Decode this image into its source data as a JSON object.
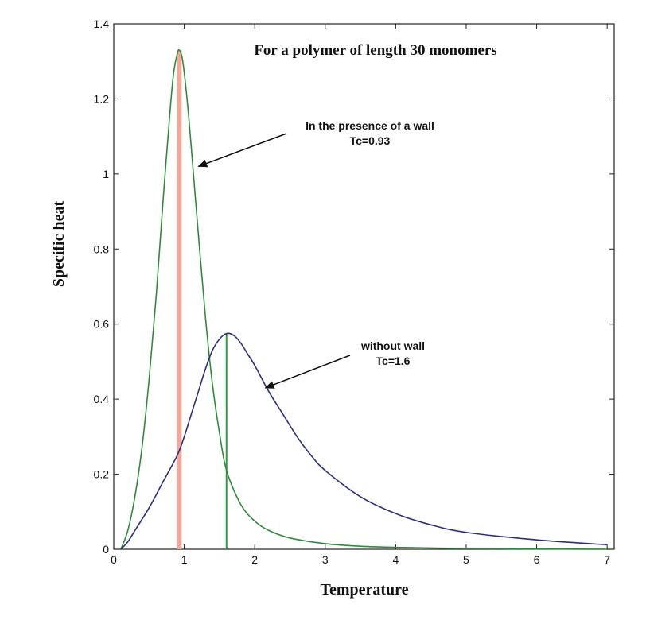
{
  "chart_data": {
    "type": "line",
    "title": "For a polymer of length 30 monomers",
    "xlabel": "Temperature",
    "ylabel": "Specific heat",
    "xlim": [
      0,
      7.1
    ],
    "ylim": [
      0,
      1.4
    ],
    "xticks": [
      "0",
      "1",
      "2",
      "3",
      "4",
      "5",
      "6",
      "7"
    ],
    "yticks": [
      "0",
      "0.2",
      "0.4",
      "0.6",
      "0.8",
      "1",
      "1.2",
      "1.4"
    ],
    "grid": false,
    "series": [
      {
        "color": "#2e8b3a",
        "x": [
          0.1,
          0.2,
          0.3,
          0.4,
          0.5,
          0.6,
          0.7,
          0.8,
          0.85,
          0.9,
          0.93,
          0.97,
          1.0,
          1.05,
          1.1,
          1.2,
          1.3,
          1.4,
          1.5,
          1.6,
          1.8,
          2.0,
          2.2,
          2.5,
          3.0,
          3.5,
          4.0,
          5.0,
          6.0,
          7.0
        ],
        "y": [
          0.0,
          0.05,
          0.14,
          0.27,
          0.45,
          0.67,
          0.93,
          1.17,
          1.27,
          1.32,
          1.33,
          1.31,
          1.27,
          1.18,
          1.07,
          0.84,
          0.62,
          0.44,
          0.31,
          0.21,
          0.12,
          0.075,
          0.05,
          0.03,
          0.015,
          0.008,
          0.005,
          0.002,
          0.001,
          0.0
        ]
      },
      {
        "color": "#2b2f7a",
        "x": [
          0.1,
          0.2,
          0.3,
          0.5,
          0.7,
          0.9,
          1.0,
          1.1,
          1.2,
          1.3,
          1.4,
          1.5,
          1.6,
          1.7,
          1.8,
          1.9,
          2.0,
          2.2,
          2.4,
          2.6,
          2.8,
          3.0,
          3.5,
          4.0,
          4.5,
          5.0,
          6.0,
          7.0
        ],
        "y": [
          0.0,
          0.02,
          0.05,
          0.11,
          0.18,
          0.25,
          0.3,
          0.36,
          0.42,
          0.48,
          0.53,
          0.56,
          0.575,
          0.57,
          0.55,
          0.52,
          0.49,
          0.42,
          0.36,
          0.3,
          0.25,
          0.21,
          0.14,
          0.095,
          0.065,
          0.045,
          0.025,
          0.012
        ]
      }
    ],
    "vertical_markers": [
      {
        "x": 0.93,
        "color": "#f0a898",
        "y_top": 1.33
      },
      {
        "x": 1.6,
        "color": "#2e9e3a",
        "y_top": 0.575
      }
    ],
    "annotations": [
      {
        "lines": [
          "In the presence of a wall",
          "Tc=0.93"
        ],
        "arrow_to": [
          1.2,
          1.02
        ]
      },
      {
        "lines": [
          "without wall",
          "Tc=1.6"
        ],
        "arrow_to": [
          2.15,
          0.43
        ]
      }
    ]
  }
}
